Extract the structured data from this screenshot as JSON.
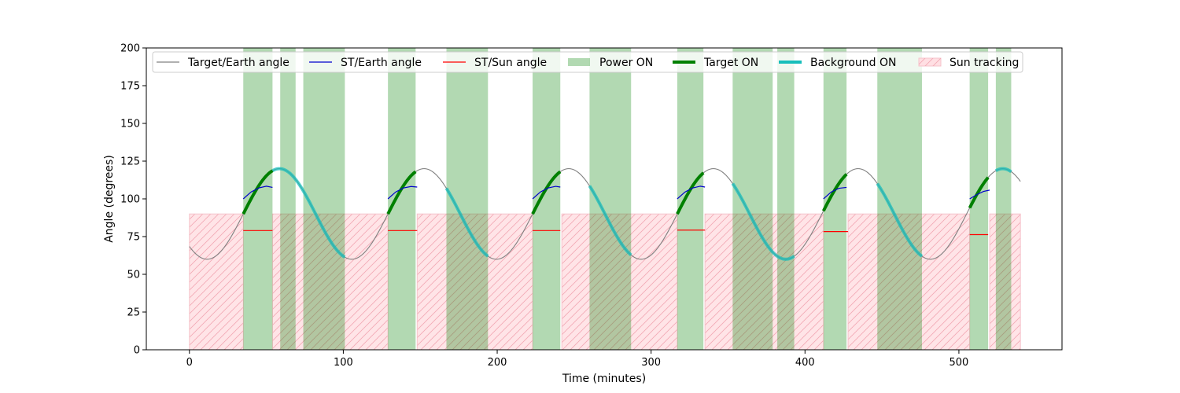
{
  "chart_data": {
    "type": "line",
    "xlabel": "Time (minutes)",
    "ylabel": "Angle (degrees)",
    "xlim": [
      -28,
      567
    ],
    "ylim": [
      0,
      200
    ],
    "xticks": [
      0,
      100,
      200,
      300,
      400,
      500
    ],
    "yticks": [
      0,
      25,
      50,
      75,
      100,
      125,
      150,
      175,
      200
    ],
    "grid": false,
    "legend_position": "top",
    "legend": [
      {
        "label": "Target/Earth angle",
        "kind": "line",
        "color": "#808080"
      },
      {
        "label": "ST/Earth angle",
        "kind": "line",
        "color": "#0000cc"
      },
      {
        "label": "ST/Sun angle",
        "kind": "line",
        "color": "#ff0000"
      },
      {
        "label": "Power ON",
        "kind": "patch",
        "color": "#b2d8b2"
      },
      {
        "label": "Target ON",
        "kind": "thick",
        "color": "#008000"
      },
      {
        "label": "Background ON",
        "kind": "thick",
        "color": "#17bebb"
      },
      {
        "label": "Sun tracking",
        "kind": "hatch",
        "color": "#ffdfe3"
      }
    ],
    "target_earth": {
      "period": 94,
      "mean": 90,
      "amplitude": 30,
      "phase_min_x": 11.5,
      "x_start": 0,
      "x_end": 540
    },
    "power_on": [
      [
        35,
        54
      ],
      [
        59,
        69
      ],
      [
        74,
        101
      ],
      [
        129,
        147
      ],
      [
        167,
        194
      ],
      [
        223,
        241
      ],
      [
        260,
        287
      ],
      [
        317,
        334
      ],
      [
        353,
        379
      ],
      [
        382,
        393
      ],
      [
        412,
        427
      ],
      [
        447,
        476
      ],
      [
        507,
        519
      ],
      [
        524,
        534
      ]
    ],
    "target_on": [
      [
        35,
        54
      ],
      [
        129,
        147
      ],
      [
        223,
        241
      ],
      [
        317,
        334
      ],
      [
        412,
        427
      ],
      [
        507,
        519
      ]
    ],
    "background_on": [
      [
        54,
        101
      ],
      [
        167,
        194
      ],
      [
        260,
        287
      ],
      [
        353,
        393
      ],
      [
        447,
        476
      ],
      [
        524,
        534
      ]
    ],
    "sun_tracking": [
      [
        0,
        35
      ],
      [
        54,
        129
      ],
      [
        148,
        223
      ],
      [
        242,
        317
      ],
      [
        335,
        412
      ],
      [
        428,
        507
      ],
      [
        520,
        540
      ]
    ],
    "st_earth": [
      {
        "x": [
          35,
          40,
          45,
          50,
          54
        ],
        "y": [
          100,
          104.5,
          107.2,
          108.4,
          107.6
        ]
      },
      {
        "x": [
          129,
          134,
          139,
          144,
          148
        ],
        "y": [
          100,
          104.5,
          107.2,
          108.2,
          107.8
        ]
      },
      {
        "x": [
          223,
          228,
          233,
          238,
          241
        ],
        "y": [
          100,
          104.5,
          107.2,
          108.3,
          107.8
        ]
      },
      {
        "x": [
          317,
          322,
          327,
          332,
          335
        ],
        "y": [
          100,
          104.5,
          107.2,
          108.4,
          107.8
        ]
      },
      {
        "x": [
          412,
          417,
          422,
          427
        ],
        "y": [
          100,
          104.5,
          107,
          107.6
        ]
      },
      {
        "x": [
          507,
          512,
          516,
          520
        ],
        "y": [
          100,
          103,
          104.9,
          105.8
        ]
      }
    ],
    "st_sun": [
      {
        "x": [
          35,
          54
        ],
        "y": [
          79,
          79
        ]
      },
      {
        "x": [
          129,
          148
        ],
        "y": [
          79,
          79
        ]
      },
      {
        "x": [
          223,
          241
        ],
        "y": [
          79,
          79
        ]
      },
      {
        "x": [
          317,
          335
        ],
        "y": [
          79.3,
          79.3
        ]
      },
      {
        "x": [
          412,
          428
        ],
        "y": [
          78.3,
          78.3
        ]
      },
      {
        "x": [
          507,
          519
        ],
        "y": [
          76.3,
          76.3
        ]
      }
    ]
  }
}
